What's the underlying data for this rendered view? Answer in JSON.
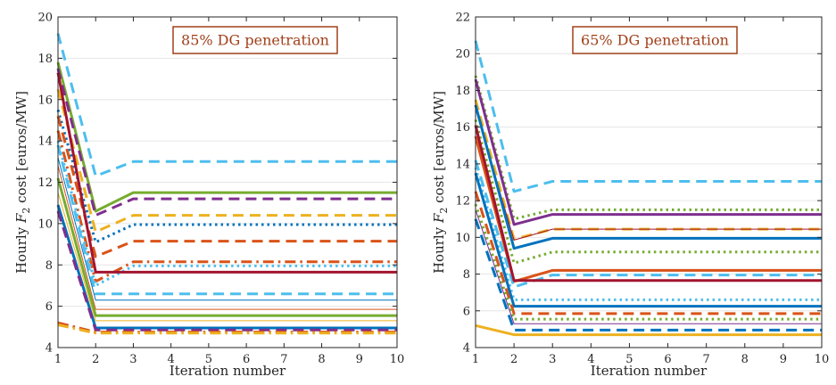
{
  "colors": {
    "blue": "#0072bd",
    "orange": "#d95319",
    "yellow": "#edb120",
    "purple": "#7e2f8e",
    "green": "#77ac30",
    "cyan": "#4dbeee",
    "darkred": "#a2142f",
    "annotation": "#a0401a",
    "grid": "#e6e6e6"
  },
  "chart_data": [
    {
      "type": "line",
      "annotation": "85% DG penetration",
      "xlabel": "Iteration number",
      "ylabel_prefix": "Hourly",
      "ylabel_symbol": "F",
      "ylabel_subscript": "2",
      "ylabel_suffix": "cost [euros/MW]",
      "xlim": [
        1,
        10
      ],
      "ylim": [
        4,
        20
      ],
      "xticks": [
        "1",
        "2",
        "3",
        "4",
        "5",
        "6",
        "7",
        "8",
        "9",
        "10"
      ],
      "yticks": [
        "4",
        "6",
        "8",
        "10",
        "12",
        "14",
        "16",
        "18",
        "20"
      ],
      "x": [
        1,
        2,
        3,
        4,
        5,
        6,
        7,
        8,
        9,
        10
      ],
      "grid": true,
      "series": [
        {
          "color": "cyan",
          "style": "dash",
          "width": 3,
          "values": [
            19.2,
            12.3,
            13.0,
            13.0,
            13.0,
            13.0,
            13.0,
            13.0,
            13.0,
            13.0
          ]
        },
        {
          "color": "green",
          "style": "solid",
          "width": 3,
          "values": [
            17.8,
            10.6,
            11.5,
            11.5,
            11.5,
            11.5,
            11.5,
            11.5,
            11.5,
            11.5
          ]
        },
        {
          "color": "purple",
          "style": "dash",
          "width": 3,
          "values": [
            17.5,
            10.4,
            11.2,
            11.2,
            11.2,
            11.2,
            11.2,
            11.2,
            11.2,
            11.2
          ]
        },
        {
          "color": "yellow",
          "style": "dash",
          "width": 3,
          "values": [
            16.5,
            9.6,
            10.4,
            10.4,
            10.4,
            10.4,
            10.4,
            10.4,
            10.4,
            10.4
          ]
        },
        {
          "color": "blue",
          "style": "dot",
          "width": 3,
          "values": [
            15.5,
            9.1,
            9.95,
            9.95,
            9.95,
            9.95,
            9.95,
            9.95,
            9.95,
            9.95
          ]
        },
        {
          "color": "orange",
          "style": "dash",
          "width": 3,
          "values": [
            15.2,
            8.4,
            9.15,
            9.15,
            9.15,
            9.15,
            9.15,
            9.15,
            9.15,
            9.15
          ]
        },
        {
          "color": "orange",
          "style": "dashdot",
          "width": 3,
          "values": [
            14.5,
            7.2,
            8.15,
            8.15,
            8.15,
            8.15,
            8.15,
            8.15,
            8.15,
            8.15
          ]
        },
        {
          "color": "cyan",
          "style": "dot",
          "width": 3,
          "values": [
            14.0,
            7.0,
            7.95,
            7.95,
            7.95,
            7.95,
            7.95,
            7.95,
            7.95,
            7.95
          ]
        },
        {
          "color": "darkred",
          "style": "solid",
          "width": 3,
          "values": [
            17.3,
            7.65,
            7.65,
            7.65,
            7.65,
            7.65,
            7.65,
            7.65,
            7.65,
            7.65
          ]
        },
        {
          "color": "cyan",
          "style": "dash",
          "width": 3,
          "values": [
            13.8,
            6.6,
            6.6,
            6.6,
            6.6,
            6.6,
            6.6,
            6.6,
            6.6,
            6.6
          ]
        },
        {
          "color": "blue",
          "style": "solid",
          "width": 1,
          "values": [
            13.2,
            6.3,
            6.3,
            6.3,
            6.3,
            6.3,
            6.3,
            6.3,
            6.3,
            6.3
          ]
        },
        {
          "color": "orange",
          "style": "solid",
          "width": 1,
          "values": [
            12.8,
            5.85,
            5.85,
            5.85,
            5.85,
            5.85,
            5.85,
            5.85,
            5.85,
            5.85
          ]
        },
        {
          "color": "green",
          "style": "solid",
          "width": 3,
          "values": [
            12.2,
            5.55,
            5.55,
            5.55,
            5.55,
            5.55,
            5.55,
            5.55,
            5.55,
            5.55
          ]
        },
        {
          "color": "yellow",
          "style": "solid",
          "width": 1,
          "values": [
            11.5,
            5.3,
            5.3,
            5.3,
            5.3,
            5.3,
            5.3,
            5.3,
            5.3,
            5.3
          ]
        },
        {
          "color": "blue",
          "style": "solid",
          "width": 3,
          "values": [
            10.9,
            4.95,
            4.95,
            4.95,
            4.95,
            4.95,
            4.95,
            4.95,
            4.95,
            4.95
          ]
        },
        {
          "color": "purple",
          "style": "dash",
          "width": 3,
          "values": [
            10.6,
            4.85,
            4.85,
            4.85,
            4.85,
            4.85,
            4.85,
            4.85,
            4.85,
            4.85
          ]
        },
        {
          "color": "orange",
          "style": "dashdot",
          "width": 3,
          "values": [
            5.2,
            4.75,
            4.75,
            4.75,
            4.75,
            4.75,
            4.75,
            4.75,
            4.75,
            4.75
          ]
        },
        {
          "color": "yellow",
          "style": "dashdot",
          "width": 3,
          "values": [
            5.1,
            4.7,
            4.7,
            4.7,
            4.7,
            4.7,
            4.7,
            4.7,
            4.7,
            4.7
          ]
        }
      ]
    },
    {
      "type": "line",
      "annotation": "65% DG penetration",
      "xlabel": "Iteration number",
      "ylabel_prefix": "Hourly",
      "ylabel_symbol": "F",
      "ylabel_subscript": "2",
      "ylabel_suffix": "cost [euros/MW]",
      "xlim": [
        1,
        10
      ],
      "ylim": [
        4,
        22
      ],
      "xticks": [
        "1",
        "2",
        "3",
        "4",
        "5",
        "6",
        "7",
        "8",
        "9",
        "10"
      ],
      "yticks": [
        "4",
        "6",
        "8",
        "10",
        "12",
        "14",
        "16",
        "18",
        "20",
        "22"
      ],
      "x": [
        1,
        2,
        3,
        4,
        5,
        6,
        7,
        8,
        9,
        10
      ],
      "grid": true,
      "series": [
        {
          "color": "cyan",
          "style": "dash",
          "width": 3,
          "values": [
            20.7,
            12.5,
            13.05,
            13.05,
            13.05,
            13.05,
            13.05,
            13.05,
            13.05,
            13.05
          ]
        },
        {
          "color": "green",
          "style": "dot",
          "width": 3,
          "values": [
            18.8,
            11.0,
            11.5,
            11.5,
            11.5,
            11.5,
            11.5,
            11.5,
            11.5,
            11.5
          ]
        },
        {
          "color": "purple",
          "style": "solid",
          "width": 3,
          "values": [
            18.6,
            10.7,
            11.25,
            11.25,
            11.25,
            11.25,
            11.25,
            11.25,
            11.25,
            11.25
          ]
        },
        {
          "color": "yellow",
          "style": "dash",
          "width": 3,
          "values": [
            17.5,
            9.9,
            10.45,
            10.45,
            10.45,
            10.45,
            10.45,
            10.45,
            10.45,
            10.45
          ]
        },
        {
          "color": "darkred",
          "style": "solid",
          "width": 1,
          "values": [
            17.0,
            9.85,
            10.45,
            10.45,
            10.45,
            10.45,
            10.45,
            10.45,
            10.45,
            10.45
          ]
        },
        {
          "color": "blue",
          "style": "solid",
          "width": 3,
          "values": [
            17.2,
            9.4,
            9.95,
            9.95,
            9.95,
            9.95,
            9.95,
            9.95,
            9.95,
            9.95
          ]
        },
        {
          "color": "green",
          "style": "dot",
          "width": 3,
          "values": [
            16.4,
            8.6,
            9.2,
            9.2,
            9.2,
            9.2,
            9.2,
            9.2,
            9.2,
            9.2
          ]
        },
        {
          "color": "orange",
          "style": "solid",
          "width": 3,
          "values": [
            15.5,
            7.6,
            8.2,
            8.2,
            8.2,
            8.2,
            8.2,
            8.2,
            8.2,
            8.2
          ]
        },
        {
          "color": "cyan",
          "style": "dash",
          "width": 3,
          "values": [
            14.2,
            7.3,
            7.95,
            7.95,
            7.95,
            7.95,
            7.95,
            7.95,
            7.95,
            7.95
          ]
        },
        {
          "color": "darkred",
          "style": "solid",
          "width": 3,
          "values": [
            16.1,
            7.65,
            7.65,
            7.65,
            7.65,
            7.65,
            7.65,
            7.65,
            7.65,
            7.65
          ]
        },
        {
          "color": "cyan",
          "style": "dot",
          "width": 3,
          "values": [
            13.8,
            6.6,
            6.6,
            6.6,
            6.6,
            6.6,
            6.6,
            6.6,
            6.6,
            6.6
          ]
        },
        {
          "color": "blue",
          "style": "solid",
          "width": 3,
          "values": [
            13.5,
            6.25,
            6.25,
            6.25,
            6.25,
            6.25,
            6.25,
            6.25,
            6.25,
            6.25
          ]
        },
        {
          "color": "orange",
          "style": "dash",
          "width": 3,
          "values": [
            12.5,
            5.85,
            5.85,
            5.85,
            5.85,
            5.85,
            5.85,
            5.85,
            5.85,
            5.85
          ]
        },
        {
          "color": "green",
          "style": "dot",
          "width": 3,
          "values": [
            11.8,
            5.55,
            5.55,
            5.55,
            5.55,
            5.55,
            5.55,
            5.55,
            5.55,
            5.55
          ]
        },
        {
          "color": "purple",
          "style": "solid",
          "width": 1,
          "values": [
            11.5,
            5.3,
            5.3,
            5.3,
            5.3,
            5.3,
            5.3,
            5.3,
            5.3,
            5.3
          ]
        },
        {
          "color": "blue",
          "style": "dash",
          "width": 3,
          "values": [
            11.0,
            4.95,
            4.95,
            4.95,
            4.95,
            4.95,
            4.95,
            4.95,
            4.95,
            4.95
          ]
        },
        {
          "color": "yellow",
          "style": "solid",
          "width": 3,
          "values": [
            5.2,
            4.7,
            4.7,
            4.7,
            4.7,
            4.7,
            4.7,
            4.7,
            4.7,
            4.7
          ]
        }
      ]
    }
  ]
}
